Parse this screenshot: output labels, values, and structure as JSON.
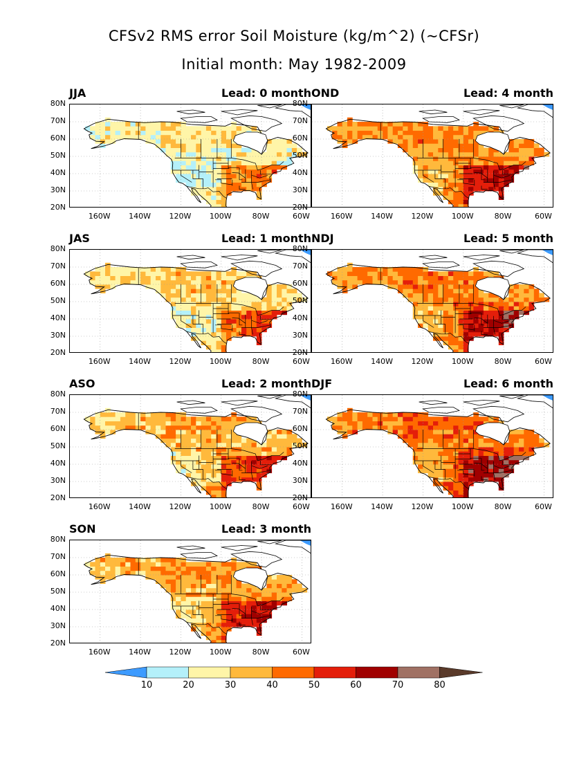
{
  "title_line1": "CFSv2 RMS error Soil Moisture (kg/m^2) (~CFSr)",
  "title_line2": "Initial month: May 1982-2009",
  "lat_labels": [
    "80N",
    "70N",
    "60N",
    "50N",
    "40N",
    "30N",
    "20N"
  ],
  "lon_labels": [
    "160W",
    "140W",
    "120W",
    "100W",
    "80W",
    "60W"
  ],
  "panels": [
    {
      "season": "JJA",
      "lead": "Lead: 0 month",
      "intensity": 0.0
    },
    {
      "season": "JAS",
      "lead": "Lead: 1 month",
      "intensity": 0.25
    },
    {
      "season": "ASO",
      "lead": "Lead: 2 month",
      "intensity": 0.45
    },
    {
      "season": "SON",
      "lead": "Lead: 3 month",
      "intensity": 0.6
    },
    {
      "season": "OND",
      "lead": "Lead: 4 month",
      "intensity": 0.75
    },
    {
      "season": "NDJ",
      "lead": "Lead: 5 month",
      "intensity": 0.85
    },
    {
      "season": "DJF",
      "lead": "Lead: 6 month",
      "intensity": 1.0
    }
  ],
  "colorbar": {
    "colors": [
      "#3d9bff",
      "#b4f0fa",
      "#fff5a8",
      "#ffb93c",
      "#ff6a00",
      "#e41e0a",
      "#a00000",
      "#a07164",
      "#5a3a2a"
    ],
    "labels": [
      "10",
      "20",
      "30",
      "40",
      "50",
      "60",
      "70",
      "80"
    ]
  }
}
